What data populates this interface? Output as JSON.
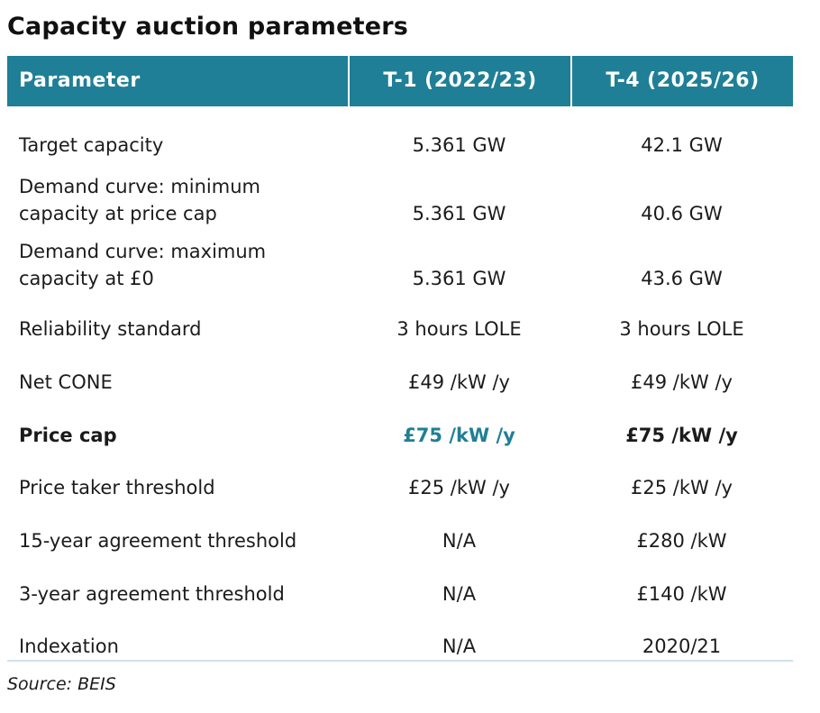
{
  "title": "Capacity auction parameters",
  "columns": [
    "Parameter",
    "T-1 (2022/23)",
    "T-4 (2025/26)"
  ],
  "rows": [
    {
      "param": "Target capacity",
      "t1": "5.361 GW",
      "t4": "42.1 GW"
    },
    {
      "param": "Demand curve: minimum capacity at price cap",
      "t1": "5.361 GW",
      "t4": "40.6 GW"
    },
    {
      "param": "Demand curve: maximum capacity at £0",
      "t1": "5.361 GW",
      "t4": "43.6 GW"
    },
    {
      "param": "Reliability standard",
      "t1": "3 hours LOLE",
      "t4": "3 hours LOLE"
    },
    {
      "param": "Net CONE",
      "t1": "£49 /kW /y",
      "t4": "£49 /kW /y"
    },
    {
      "param": "Price cap",
      "t1": "£75 /kW /y",
      "t4": "£75 /kW /y"
    },
    {
      "param": "Price taker threshold",
      "t1": "£25 /kW /y",
      "t4": "£25 /kW /y"
    },
    {
      "param": "15-year agreement threshold",
      "t1": "N/A",
      "t4": "£280 /kW"
    },
    {
      "param": "3-year agreement threshold",
      "t1": "N/A",
      "t4": "£140 /kW"
    },
    {
      "param": "Indexation",
      "t1": "N/A",
      "t4": "2020/21"
    }
  ],
  "source": "Source: BEIS",
  "colors": {
    "header_bg": "#1f7f96",
    "header_text": "#ffffff",
    "accent": "#1f7f96"
  }
}
